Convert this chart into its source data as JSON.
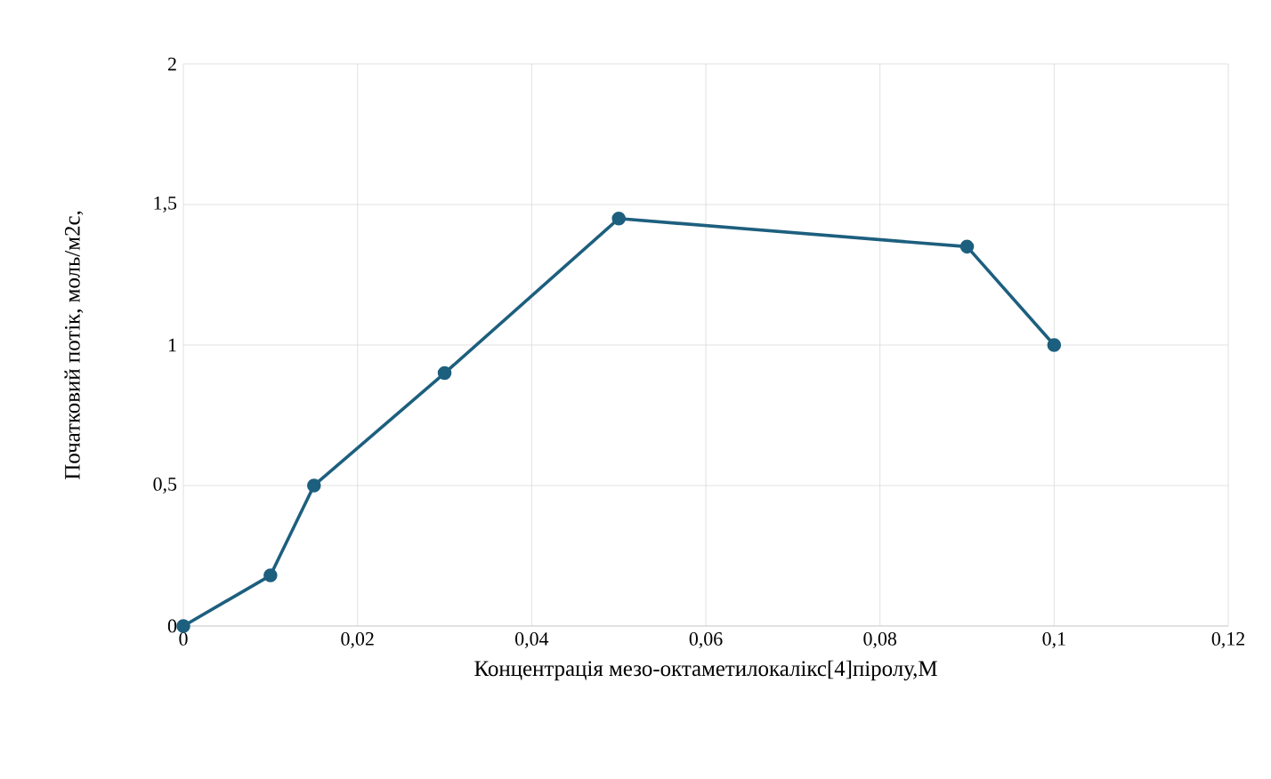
{
  "chart_data": {
    "type": "line",
    "xlabel": "Концентрація мезо-октаметилокалікс[4]піролу,М",
    "ylabel": "Початковий потік, моль/м2с,",
    "x": [
      0,
      0.01,
      0.015,
      0.03,
      0.05,
      0.09,
      0.1
    ],
    "series": [
      {
        "color": "#1d5f7e",
        "values": [
          0,
          0.18,
          0.5,
          0.9,
          1.45,
          1.35,
          1.0
        ]
      }
    ],
    "xlim": [
      0,
      0.12
    ],
    "ylim": [
      0,
      2
    ],
    "xticks": [
      0,
      {
        "value": 0.02,
        "label": "0,02"
      },
      {
        "value": 0.04,
        "label": "0,04"
      },
      {
        "value": 0.06,
        "label": "0,06"
      },
      {
        "value": 0.08,
        "label": "0,08"
      },
      {
        "value": 0.1,
        "label": "0,1"
      },
      {
        "value": 0.12,
        "label": "0,12"
      }
    ],
    "yticks": [
      0,
      {
        "value": 0.5,
        "label": "0,5"
      },
      1,
      {
        "value": 1.5,
        "label": "1,5"
      },
      2
    ],
    "grid": true,
    "marker": "circle",
    "line_style": "solid"
  }
}
